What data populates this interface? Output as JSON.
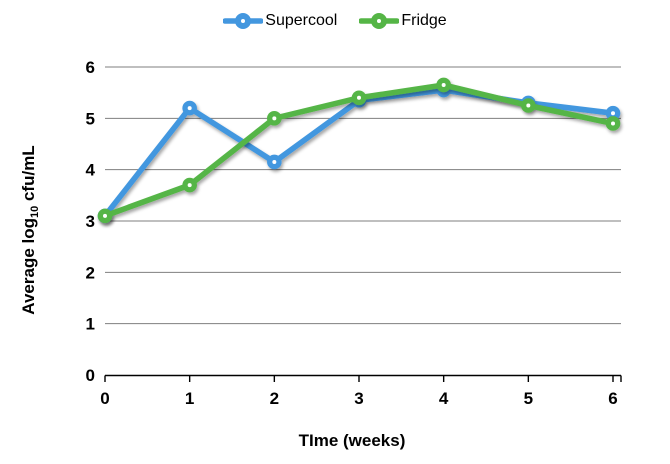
{
  "chart_data": {
    "type": "line",
    "x": [
      0,
      1,
      2,
      3,
      4,
      5,
      6
    ],
    "x_tick_labels": [
      "0",
      "1",
      "2",
      "3",
      "4",
      "5",
      "6"
    ],
    "y_ticks": [
      0,
      1,
      2,
      3,
      4,
      5,
      6
    ],
    "y_tick_labels": [
      "0",
      "1",
      "2",
      "3",
      "4",
      "5",
      "6"
    ],
    "xlim": [
      0,
      6
    ],
    "ylim": [
      0,
      6
    ],
    "grid": true,
    "legend_position": "top-center",
    "title": "",
    "xlabel": "TIme (weeks)",
    "ylabel": {
      "prefix": "Average log",
      "sub": "10",
      "suffix": " cfu/mL"
    },
    "series": [
      {
        "name": "Supercool",
        "color": "#4397df",
        "values": [
          3.1,
          5.2,
          4.15,
          5.35,
          5.55,
          5.3,
          5.1
        ]
      },
      {
        "name": "Fridge",
        "color": "#55b546",
        "values": [
          3.1,
          3.7,
          5.0,
          5.4,
          5.65,
          5.25,
          4.9
        ]
      }
    ]
  },
  "colors": {
    "background": "#ffffff",
    "gridline": "#7f7f7f",
    "axis": "#000000",
    "text": "#000000",
    "marker_center_dot": "#ffffff"
  }
}
